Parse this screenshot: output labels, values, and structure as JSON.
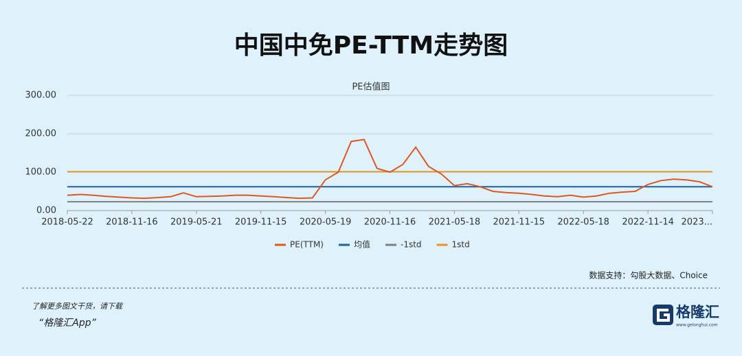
{
  "chart_data": {
    "type": "line",
    "title": "中国中免PE-TTM走势图",
    "subtitle": "PE估值图",
    "source": "数据支持：勾股大数据、Choice",
    "categories": [
      "2018-05-22",
      null,
      null,
      null,
      null,
      "2018-11-16",
      null,
      null,
      null,
      null,
      "2019-05-21",
      null,
      null,
      null,
      null,
      "2019-11-15",
      null,
      null,
      null,
      null,
      "2020-05-19",
      null,
      null,
      null,
      null,
      "2020-11-16",
      null,
      null,
      null,
      null,
      "2021-05-18",
      null,
      null,
      null,
      null,
      "2021-11-15",
      null,
      null,
      null,
      null,
      "2022-05-18",
      null,
      null,
      null,
      null,
      "2022-11-14",
      null,
      null,
      null,
      null,
      "2023..."
    ],
    "series": [
      {
        "name": "PE(TTM)",
        "color": "#e0561f",
        "values": [
          40,
          42,
          40,
          37,
          35,
          33,
          32,
          34,
          36,
          46,
          36,
          37,
          38,
          40,
          40,
          38,
          36,
          34,
          32,
          33,
          80,
          100,
          180,
          185,
          110,
          100,
          120,
          165,
          115,
          95,
          65,
          70,
          62,
          50,
          47,
          45,
          42,
          38,
          36,
          40,
          35,
          38,
          45,
          48,
          50,
          68,
          78,
          82,
          80,
          75,
          62
        ]
      },
      {
        "name": "均值",
        "color": "#1f5fa6",
        "values": [
          62,
          62,
          62,
          62,
          62,
          62,
          62,
          62,
          62,
          62,
          62,
          62,
          62,
          62,
          62,
          62,
          62,
          62,
          62,
          62,
          62,
          62,
          62,
          62,
          62,
          62,
          62,
          62,
          62,
          62,
          62,
          62,
          62,
          62,
          62,
          62,
          62,
          62,
          62,
          62,
          62,
          62,
          62,
          62,
          62,
          62,
          62,
          62,
          62,
          62,
          62
        ]
      },
      {
        "name": "-1std",
        "color": "#7f7f7f",
        "values": [
          23,
          23,
          23,
          23,
          23,
          23,
          23,
          23,
          23,
          23,
          23,
          23,
          23,
          23,
          23,
          23,
          23,
          23,
          23,
          23,
          23,
          23,
          23,
          23,
          23,
          23,
          23,
          23,
          23,
          23,
          23,
          23,
          23,
          23,
          23,
          23,
          23,
          23,
          23,
          23,
          23,
          23,
          23,
          23,
          23,
          23,
          23,
          23,
          23,
          23,
          23
        ]
      },
      {
        "name": "1std",
        "color": "#e5961c",
        "values": [
          101,
          101,
          101,
          101,
          101,
          101,
          101,
          101,
          101,
          101,
          101,
          101,
          101,
          101,
          101,
          101,
          101,
          101,
          101,
          101,
          101,
          101,
          101,
          101,
          101,
          101,
          101,
          101,
          101,
          101,
          101,
          101,
          101,
          101,
          101,
          101,
          101,
          101,
          101,
          101,
          101,
          101,
          101,
          101,
          101,
          101,
          101,
          101,
          101,
          101,
          101
        ]
      }
    ],
    "ylim": [
      0,
      300
    ],
    "yticks": [
      {
        "value": 0,
        "label": "0.00"
      },
      {
        "value": 100,
        "label": "100.00"
      },
      {
        "value": 200,
        "label": "200.00"
      },
      {
        "value": 300,
        "label": "300.00"
      }
    ],
    "grid": true,
    "legend": "bottom"
  },
  "footer": {
    "line1": "了解更多图文干货，请下载",
    "line2": "“格隆汇App”",
    "logo": "格隆汇",
    "logo_url": "www.gelonghui.com"
  }
}
